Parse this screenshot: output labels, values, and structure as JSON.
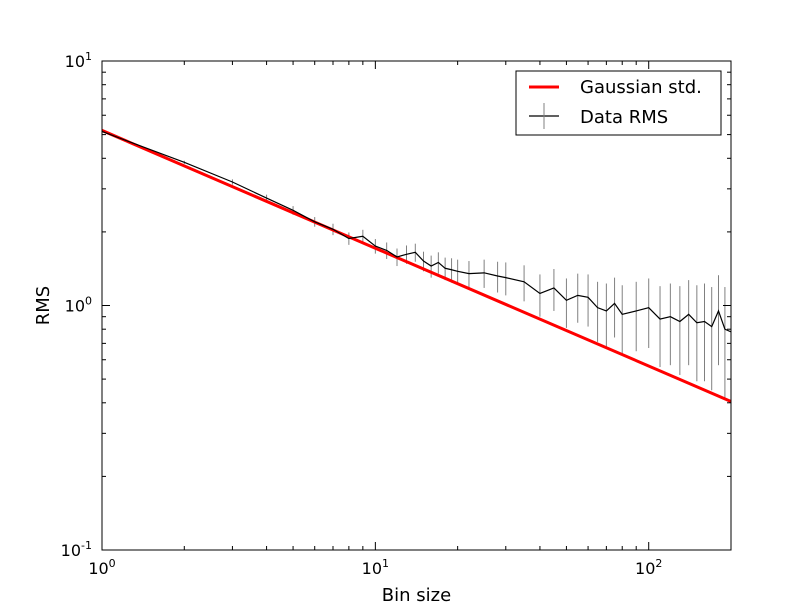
{
  "chart_data": {
    "type": "line",
    "xscale": "log",
    "yscale": "log",
    "xlabel": "Bin size",
    "ylabel": "RMS",
    "xlim": [
      1,
      200
    ],
    "ylim": [
      0.1,
      10
    ],
    "grid": false,
    "legend_position": "top-right",
    "x_ticks": [
      {
        "value": 1,
        "base": "10",
        "exp": "0"
      },
      {
        "value": 10,
        "base": "10",
        "exp": "1"
      },
      {
        "value": 100,
        "base": "10",
        "exp": "2"
      }
    ],
    "y_ticks": [
      {
        "value": 0.1,
        "base": "10",
        "exp": "-1"
      },
      {
        "value": 1,
        "base": "10",
        "exp": "0"
      },
      {
        "value": 10,
        "base": "10",
        "exp": "1"
      }
    ],
    "series": [
      {
        "name": "Gaussian std.",
        "style": "line",
        "color": "#ff0000",
        "x": [
          1,
          200
        ],
        "y": [
          5.2,
          0.405
        ]
      },
      {
        "name": "Data RMS",
        "style": "errorbar",
        "color": "#000000",
        "errorbar_color": "#808080",
        "x": [
          1,
          2,
          3,
          4,
          5,
          6,
          7,
          8,
          9,
          10,
          11,
          12,
          13,
          14,
          15,
          16,
          17,
          18,
          19,
          20,
          22,
          25,
          28,
          30,
          35,
          40,
          45,
          50,
          55,
          60,
          65,
          70,
          75,
          80,
          90,
          100,
          110,
          120,
          130,
          140,
          150,
          160,
          170,
          180,
          190,
          200
        ],
        "y": [
          5.15,
          3.85,
          3.2,
          2.75,
          2.45,
          2.2,
          2.05,
          1.88,
          1.92,
          1.75,
          1.68,
          1.58,
          1.62,
          1.65,
          1.52,
          1.45,
          1.5,
          1.42,
          1.4,
          1.38,
          1.35,
          1.36,
          1.32,
          1.3,
          1.25,
          1.12,
          1.18,
          1.05,
          1.1,
          1.08,
          0.98,
          0.95,
          1.02,
          0.92,
          0.95,
          0.98,
          0.88,
          0.9,
          0.86,
          0.92,
          0.85,
          0.86,
          0.82,
          0.95,
          0.8,
          0.78
        ],
        "yerr": [
          0.02,
          0.06,
          0.08,
          0.09,
          0.1,
          0.1,
          0.11,
          0.11,
          0.12,
          0.12,
          0.13,
          0.13,
          0.14,
          0.14,
          0.14,
          0.15,
          0.15,
          0.15,
          0.16,
          0.16,
          0.17,
          0.18,
          0.19,
          0.2,
          0.21,
          0.22,
          0.23,
          0.24,
          0.25,
          0.26,
          0.27,
          0.28,
          0.28,
          0.29,
          0.3,
          0.31,
          0.32,
          0.33,
          0.34,
          0.35,
          0.36,
          0.37,
          0.37,
          0.38,
          0.39,
          0.4
        ]
      }
    ]
  }
}
